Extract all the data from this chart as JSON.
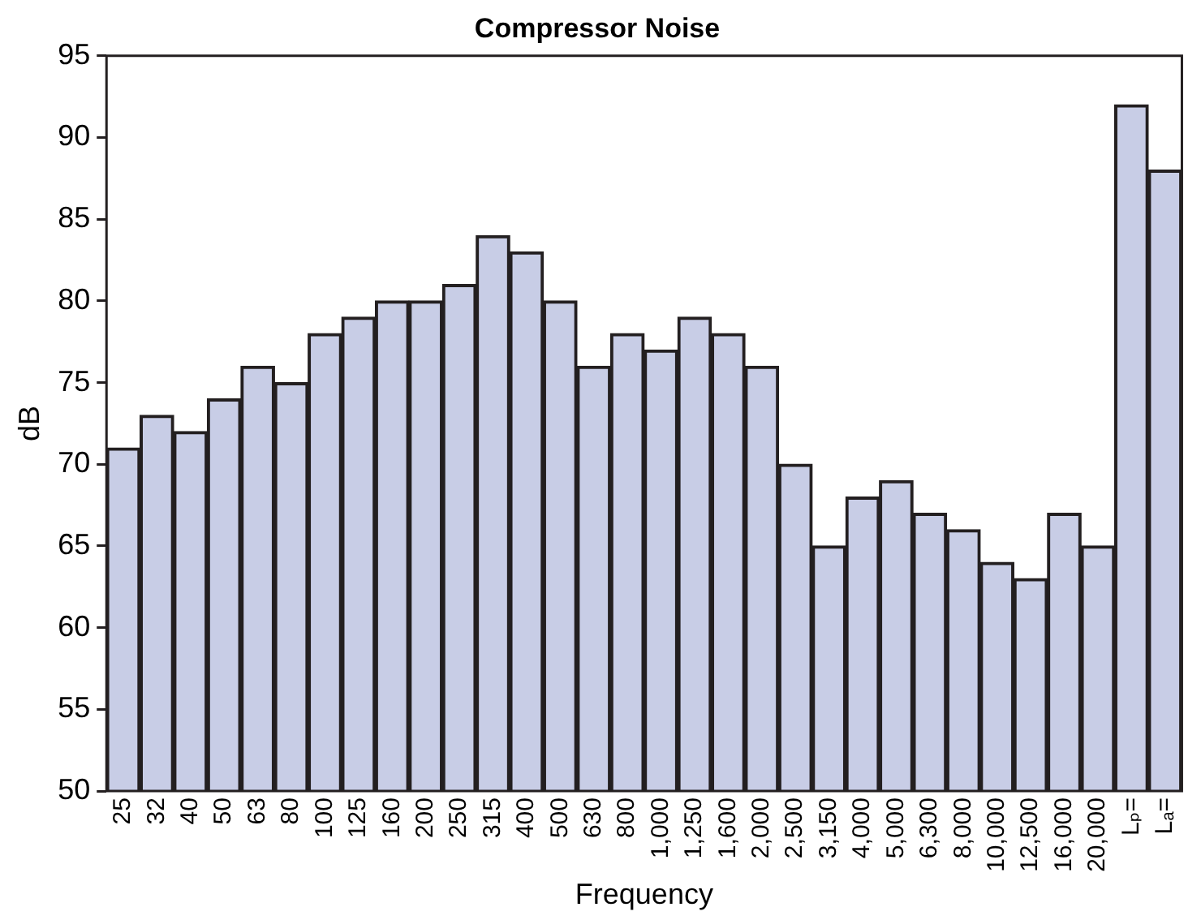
{
  "chart_data": {
    "type": "bar",
    "title": "Compressor Noise",
    "xlabel": "Frequency",
    "ylabel": "dB",
    "categories": [
      "25",
      "32",
      "40",
      "50",
      "63",
      "80",
      "100",
      "125",
      "160",
      "200",
      "250",
      "315",
      "400",
      "500",
      "630",
      "800",
      "1,000",
      "1,250",
      "1,600",
      "2,000",
      "2,500",
      "3,150",
      "4,000",
      "5,000",
      "6,300",
      "8,000",
      "10,000",
      "12,500",
      "16,000",
      "20,000",
      "Lₚ=",
      "Lₐ="
    ],
    "values": [
      71,
      73,
      72,
      74,
      76,
      75,
      78,
      79,
      80,
      80,
      81,
      84,
      83,
      80,
      76,
      78,
      77,
      79,
      78,
      76,
      70,
      65,
      68,
      69,
      67,
      66,
      64,
      63,
      67,
      65,
      92,
      88
    ],
    "color": "#c8cde6",
    "ylim": [
      50,
      95
    ],
    "yticks": [
      50,
      55,
      60,
      65,
      70,
      75,
      80,
      85,
      90,
      95
    ],
    "grid": false,
    "legend": false
  }
}
